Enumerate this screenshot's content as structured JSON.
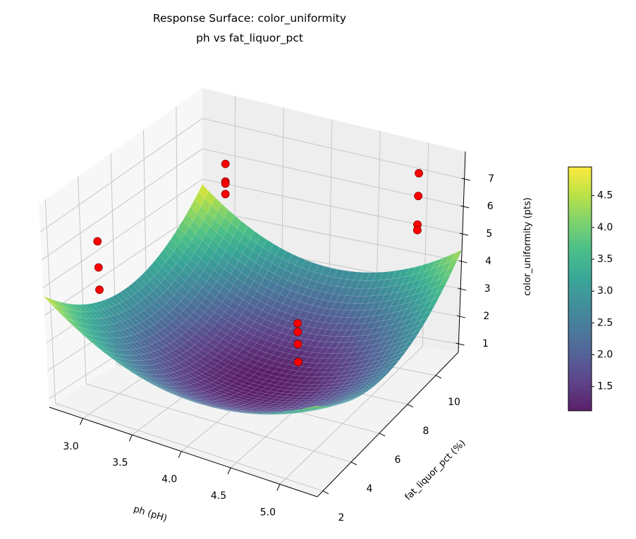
{
  "chart_data": {
    "type": "surface3d",
    "title": "Response Surface: color_uniformity",
    "subtitle": "ph vs fat_liquor_pct",
    "xlabel": "ph (pH)",
    "ylabel": "fat_liquor_pct (%)",
    "zlabel": "color_uniformity (pts)",
    "xlim": [
      2.66,
      5.38
    ],
    "ylim": [
      1.6,
      11.6
    ],
    "zlim": [
      0.69,
      8.0
    ],
    "xticks": [
      "3.0",
      "3.5",
      "4.0",
      "4.5",
      "5.0"
    ],
    "yticks": [
      "2",
      "4",
      "6",
      "8",
      "10"
    ],
    "zticks": [
      "1",
      "2",
      "3",
      "4",
      "5",
      "6",
      "7"
    ],
    "colormap": "viridis",
    "colorbar": {
      "range": [
        1.12,
        4.95
      ],
      "ticks": [
        "1.5",
        "2.0",
        "2.5",
        "3.0",
        "3.5",
        "4.0",
        "4.5"
      ]
    },
    "surface_model": {
      "min_value": 1.1,
      "x_at_min": 4.1,
      "y_at_min": 6.5,
      "x_coef": 1.6,
      "x_scale": 1.3,
      "y_coef": 1.7,
      "y_scale": 5.0
    },
    "points": [
      {
        "x": 3,
        "y": 3,
        "z": 6.54
      },
      {
        "x": 3,
        "y": 3,
        "z": 5.6
      },
      {
        "x": 3,
        "y": 3,
        "z": 4.8
      },
      {
        "x": 3,
        "y": 11,
        "z": 5.97
      },
      {
        "x": 3,
        "y": 11,
        "z": 5.38
      },
      {
        "x": 3,
        "y": 11,
        "z": 5.31
      },
      {
        "x": 3,
        "y": 11,
        "z": 4.96
      },
      {
        "x": 5,
        "y": 11,
        "z": 7.23
      },
      {
        "x": 5,
        "y": 11,
        "z": 6.41
      },
      {
        "x": 5,
        "y": 11,
        "z": 5.38
      },
      {
        "x": 5,
        "y": 11,
        "z": 5.18
      },
      {
        "x": 5,
        "y": 3,
        "z": 6.15
      },
      {
        "x": 5,
        "y": 3,
        "z": 5.82
      },
      {
        "x": 5,
        "y": 3,
        "z": 5.35
      },
      {
        "x": 5,
        "y": 3,
        "z": 4.66
      }
    ],
    "point_color": "#ff0000",
    "grid": true
  }
}
